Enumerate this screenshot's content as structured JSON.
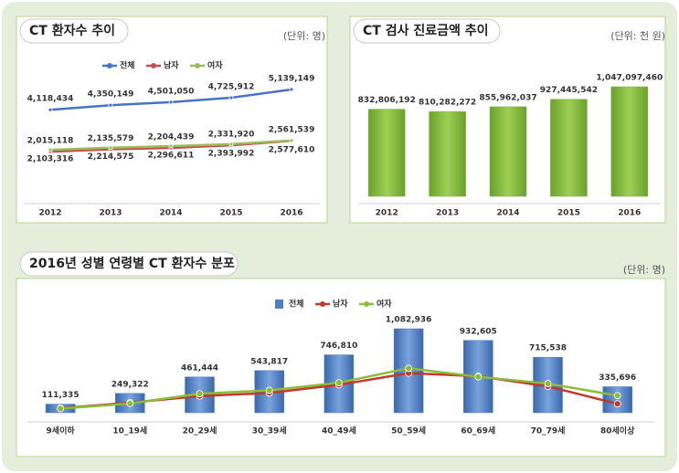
{
  "chart_data": [
    {
      "type": "line",
      "title": "CT 환자수 추이",
      "unit": "(단위: 명)",
      "categories": [
        "2012",
        "2013",
        "2014",
        "2015",
        "2016"
      ],
      "series": [
        {
          "name": "전체",
          "color": "#4a72c4",
          "values": [
            4118434,
            4350149,
            4501050,
            4725912,
            5139149
          ],
          "value_labels": [
            "4,118,434",
            "4,350,149",
            "4,501,050",
            "4,725,912",
            "5,139,149"
          ]
        },
        {
          "name": "남자",
          "color": "#c0504d",
          "values": [
            2015118,
            2135579,
            2204439,
            2331920,
            2561539
          ],
          "value_labels": [
            "2,015,118",
            "2,135,579",
            "2,204,439",
            "2,331,920",
            "2,561,539"
          ]
        },
        {
          "name": "여자",
          "color": "#9bbb59",
          "values": [
            2103316,
            2214575,
            2296611,
            2393992,
            2577610
          ],
          "value_labels": [
            "2,103,316",
            "2,214,575",
            "2,296,611",
            "2,393,992",
            "2,577,610"
          ]
        }
      ]
    },
    {
      "type": "bar",
      "title": "CT 검사 진료금액 추이",
      "unit": "(단위: 천 원)",
      "categories": [
        "2012",
        "2013",
        "2014",
        "2015",
        "2016"
      ],
      "color": "#7fb53a",
      "values": [
        832806192,
        810282272,
        855962037,
        927445542,
        1047097460
      ],
      "value_labels": [
        "832,806,192",
        "810,282,272",
        "855,962,037",
        "927,445,542",
        "1,047,097,460"
      ]
    },
    {
      "type": "bar-line",
      "title": "2016년 성별 연령별 CT 환자수 분포",
      "unit": "(단위: 명)",
      "categories": [
        "9세이하",
        "10_19세",
        "20_29세",
        "30_39세",
        "40_49세",
        "50_59세",
        "60_69세",
        "70_79세",
        "80세이상"
      ],
      "series": [
        {
          "name": "전체",
          "color": "#4f7fc0",
          "values": [
            111335,
            249322,
            461444,
            543817,
            746810,
            1082936,
            932605,
            715538,
            335696
          ],
          "value_labels": [
            "111,335",
            "249,322",
            "461,444",
            "543,817",
            "746,810",
            "1,082,936",
            "932,605",
            "715,538",
            "335,696"
          ]
        },
        {
          "name": "남자",
          "color": "#c0392b",
          "values": [
            58000,
            130000,
            215000,
            255000,
            360000,
            510000,
            470000,
            340000,
            115000
          ]
        },
        {
          "name": "여자",
          "color": "#8dbb3a",
          "values": [
            53000,
            119000,
            246000,
            289000,
            387000,
            573000,
            463000,
            376000,
            221000
          ]
        }
      ]
    }
  ]
}
